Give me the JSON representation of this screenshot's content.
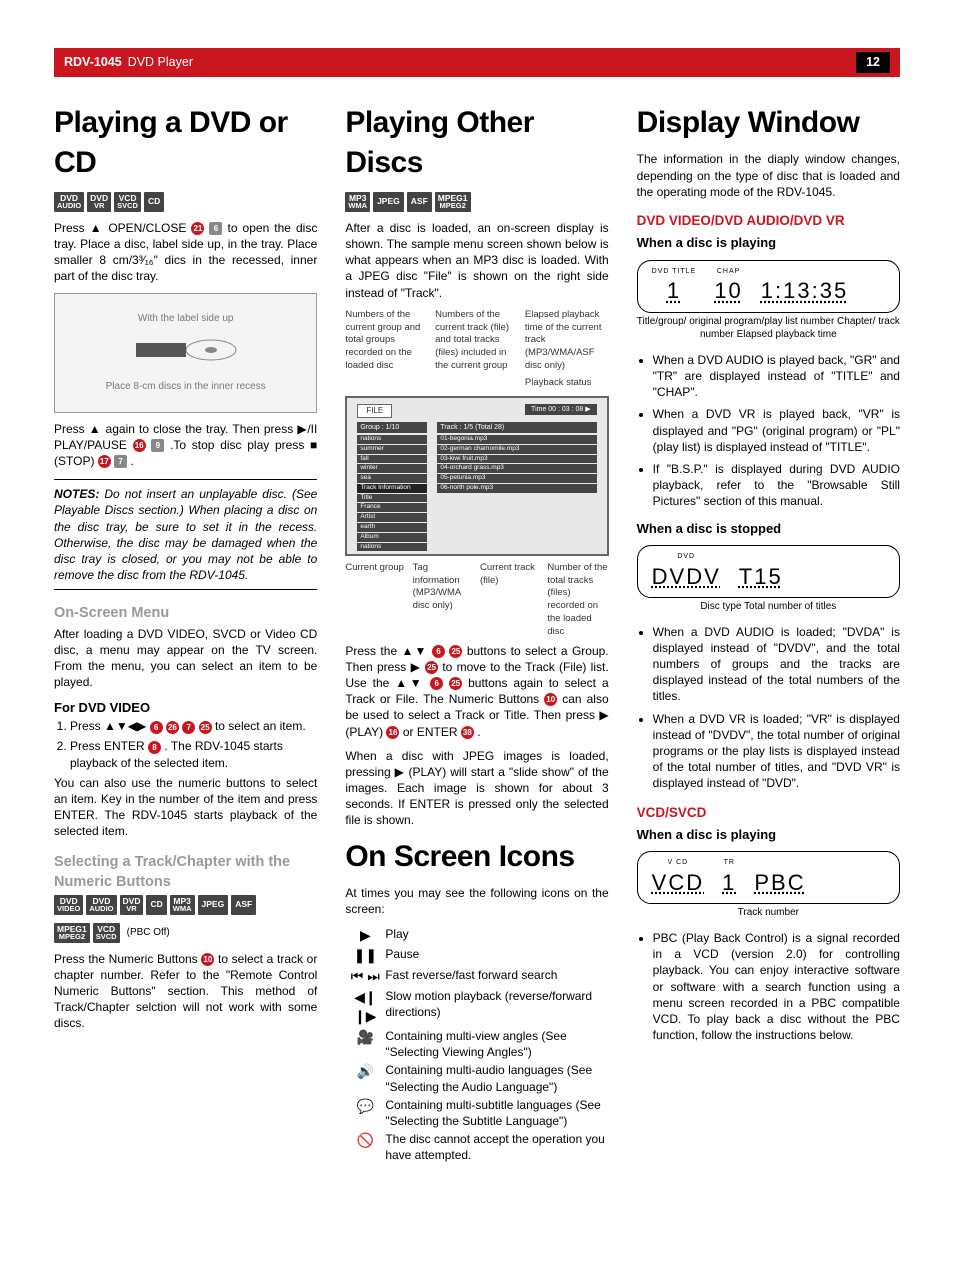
{
  "header": {
    "model": "RDV-1045",
    "product": "DVD Player",
    "page": "12"
  },
  "col1": {
    "h1": "Playing a DVD or CD",
    "formats": [
      [
        "DVD",
        "AUDIO"
      ],
      [
        "DVD",
        "VR"
      ],
      [
        "VCD",
        "SVCD"
      ],
      [
        "CD",
        ""
      ]
    ],
    "p1": "Press ▲ OPEN/CLOSE",
    "p1b": "to open the disc tray. Place a disc, label side up, in the tray. Place smaller 8 cm/3³⁄₁₆\" dics in the recessed, inner part of the disc tray.",
    "fig1_a": "With the label side up",
    "fig1_b": "Place 8-cm discs in the inner recess",
    "p2a": "Press ▲ again to close the tray. Then press ▶/II PLAY/PAUSE",
    "p2b": ".To stop disc play press ■ (STOP)",
    "p2c": ".",
    "notes": "NOTES:",
    "notes_body": " Do not insert an unplayable disc. (See Playable Discs section.) When placing a disc on the disc tray, be sure to set it in the recess. Otherwise, the disc may be damaged when the disc tray is closed, or you may not be able to remove the disc from the RDV-1045.",
    "h2a": "On-Screen Menu",
    "p3": "After loading a DVD VIDEO, SVCD or Video CD disc, a menu may appear on the TV screen. From the menu, you can select an item to be played.",
    "h3a": "For DVD VIDEO",
    "step1": "Press ▲▼◀▶",
    "step1b": "to select an item.",
    "step2": "Press ENTER",
    "step2b": ". The RDV-1045 starts playback of the selected item.",
    "p4": "You can also use the numeric buttons to select an item. Key in the number of the item and press ENTER. The RDV-1045 starts playback of the selected item.",
    "h2b": "Selecting a Track/Chapter with the Numeric Buttons",
    "formats2": [
      [
        "DVD",
        "VIDEO"
      ],
      [
        "DVD",
        "AUDIO"
      ],
      [
        "DVD",
        "VR"
      ],
      [
        "CD",
        ""
      ],
      [
        "MP3",
        "WMA"
      ],
      [
        "JPEG",
        ""
      ],
      [
        "ASF",
        ""
      ]
    ],
    "formats3": [
      [
        "MPEG1",
        "MPEG2"
      ],
      [
        "VCD",
        "SVCD"
      ]
    ],
    "pbc": "(PBC Off)",
    "p5a": "Press the Numeric Buttons",
    "p5b": "to select a track or chapter number. Refer to the \"Remote Control Numeric Buttons\" section. This method of Track/Chapter selction will not work with some discs."
  },
  "col2": {
    "h1": "Playing Other Discs",
    "formats": [
      [
        "MP3",
        "WMA"
      ],
      [
        "JPEG",
        ""
      ],
      [
        "ASF",
        ""
      ],
      [
        "MPEG1",
        "MPEG2"
      ]
    ],
    "p1": "After a disc is loaded, an on-screen display is shown. The sample menu screen shown below is what appears when an MP3 disc is loaded. With a JPEG disc \"File\" is shown on the right side instead of \"Track\".",
    "annot_top": [
      "Numbers of the current group and total groups recorded on the loaded disc",
      "Numbers of the current track (file) and total tracks (files) included in the current group",
      "Elapsed playback time of the current track (MP3/WMA/ASF disc only)",
      "Playback status"
    ],
    "screen": {
      "tab": "FILE",
      "time": "Time  00 : 03 : 08  ▶",
      "left_hdr": "Group : 1/10",
      "left_items": [
        "nations",
        "summer",
        "fall",
        "winter",
        "sea",
        "Track Information",
        "Title",
        "France",
        "Artist",
        "earth",
        "Album",
        "nations"
      ],
      "right_hdr": "Track : 1/5 (Total 28)",
      "right_items": [
        "01-begonia.mp3",
        "02-german chamomile.mp3",
        "03-kiwi fruit.mp3",
        "04-orchard grass.mp3",
        "05-petunia.mp3",
        "06-north pole.mp3"
      ]
    },
    "annot_bot": [
      "Current group",
      "Tag information (MP3/WMA disc only)",
      "Current track (file)",
      "Number of the total tracks (files) recorded on the loaded disc"
    ],
    "p2a": "Press the ▲▼",
    "p2b": "buttons to select a Group. Then press ▶",
    "p2c": "to move to the Track (File) list. Use the ▲▼",
    "p2d": "buttons again to select a Track or File. The Numeric Buttons",
    "p2e": "can also be used to select a Track or Title. Then press ▶ (PLAY)",
    "p2f": "or ENTER",
    "p2g": ".",
    "p3": "When a disc with JPEG images is loaded, pressing ▶ (PLAY) will start a \"slide show\" of the images. Each image is shown for about 3 seconds. If ENTER is pressed only the selected file is shown.",
    "h1b": "On Screen Icons",
    "p4": "At times you may see the following icons on the screen:",
    "icons": [
      {
        "glyph": "▶",
        "label": "Play"
      },
      {
        "glyph": "❚❚",
        "label": "Pause"
      },
      {
        "glyph": "⏮ ⏭",
        "label": "Fast reverse/fast forward search"
      },
      {
        "glyph": "◀❙ ❙▶",
        "label": "Slow motion playback (reverse/forward directions)"
      },
      {
        "glyph": "🎥",
        "label": "Containing multi-view angles (See \"Selecting Viewing Angles\")"
      },
      {
        "glyph": "🔊",
        "label": "Containing multi-audio languages (See \"Selecting the Audio Language\")"
      },
      {
        "glyph": "💬",
        "label": "Containing multi-subtitle languages (See \"Selecting the Subtitle Language\")"
      },
      {
        "glyph": "🚫",
        "label": "The disc cannot accept the operation you have attempted."
      }
    ]
  },
  "col3": {
    "h1": "Display Window",
    "p1": "The information in the diaply window changes, depending on the type of disc that is loaded and the operating mode of the RDV-1045.",
    "h4a": "DVD VIDEO/DVD AUDIO/DVD VR",
    "h3a": "When a disc is playing",
    "lcd1": {
      "segs": [
        {
          "lab": "DVD TITLE",
          "val": "1"
        },
        {
          "lab": "CHAP",
          "val": "10"
        },
        {
          "lab": "",
          "val": "1:13:35"
        }
      ],
      "caps": "Title/group/ original program/play list number   Chapter/ track number   Elapsed playback time"
    },
    "bullets1": [
      "When a DVD AUDIO is played back, \"GR\" and \"TR\" are displayed instead of \"TITLE\" and \"CHAP\".",
      "When a DVD VR is played back, \"VR\" is displayed and \"PG\" (original program) or \"PL\" (play list) is displayed instead of \"TITLE\".",
      "If \"B.S.P.\" is displayed during DVD AUDIO playback, refer to the \"Browsable Still Pictures\" section of this manual."
    ],
    "h3b": "When a disc is stopped",
    "lcd2": {
      "segs": [
        {
          "lab": "DVD",
          "val": "DVDV"
        },
        {
          "lab": "",
          "val": "T15"
        }
      ],
      "caps": "Disc type   Total number of titles"
    },
    "bullets2": [
      "When a DVD AUDIO is loaded; \"DVDA\" is displayed instead of \"DVDV\", and the total numbers of groups and the tracks are displayed instead of the total numbers of the titles.",
      "When a DVD VR is loaded; \"VR\" is displayed instead of \"DVDV\", the total number of original programs or the play lists is displayed instead of the total number of titles, and \"DVD VR\" is displayed instead of \"DVD\"."
    ],
    "h4b": "VCD/SVCD",
    "h3c": "When a disc is playing",
    "lcd3": {
      "segs": [
        {
          "lab": "V CD",
          "val": "VCD"
        },
        {
          "lab": "TR",
          "val": "1"
        },
        {
          "lab": "",
          "val": "PBC"
        }
      ],
      "caps": "Track number"
    },
    "bullets3": [
      "PBC (Play Back Control) is a signal recorded in a VCD (version 2.0) for controlling playback. You can enjoy interactive software or software with a search function using a menu screen recorded in a PBC compatible VCD. To play back a disc without the PBC function, follow the instructions below."
    ]
  }
}
